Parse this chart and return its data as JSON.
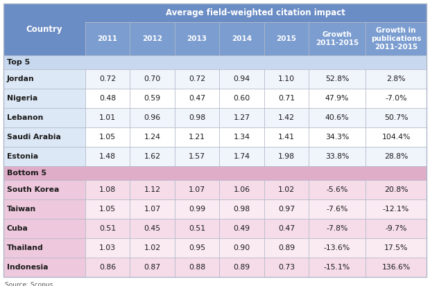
{
  "title_row": "Average field-weighted citation impact",
  "col_headers": [
    "2011",
    "2012",
    "2013",
    "2014",
    "2015",
    "Growth\n2011-2015",
    "Growth in\npublications\n2011-2015"
  ],
  "row_header": "Country",
  "section_top": "Top 5",
  "section_bottom": "Bottom 5",
  "top5_rows": [
    [
      "Jordan",
      "0.72",
      "0.70",
      "0.72",
      "0.94",
      "1.10",
      "52.8%",
      "2.8%"
    ],
    [
      "Nigeria",
      "0.48",
      "0.59",
      "0.47",
      "0.60",
      "0.71",
      "47.9%",
      "-7.0%"
    ],
    [
      "Lebanon",
      "1.01",
      "0.96",
      "0.98",
      "1.27",
      "1.42",
      "40.6%",
      "50.7%"
    ],
    [
      "Saudi Arabia",
      "1.05",
      "1.24",
      "1.21",
      "1.34",
      "1.41",
      "34.3%",
      "104.4%"
    ],
    [
      "Estonia",
      "1.48",
      "1.62",
      "1.57",
      "1.74",
      "1.98",
      "33.8%",
      "28.8%"
    ]
  ],
  "bottom5_rows": [
    [
      "South Korea",
      "1.08",
      "1.12",
      "1.07",
      "1.06",
      "1.02",
      "-5.6%",
      "20.8%"
    ],
    [
      "Taiwan",
      "1.05",
      "1.07",
      "0.99",
      "0.98",
      "0.97",
      "-7.6%",
      "-12.1%"
    ],
    [
      "Cuba",
      "0.51",
      "0.45",
      "0.51",
      "0.49",
      "0.47",
      "-7.8%",
      "-9.7%"
    ],
    [
      "Thailand",
      "1.03",
      "1.02",
      "0.95",
      "0.90",
      "0.89",
      "-13.6%",
      "17.5%"
    ],
    [
      "Indonesia",
      "0.86",
      "0.87",
      "0.88",
      "0.89",
      "0.73",
      "-15.1%",
      "136.6%"
    ]
  ],
  "source": "Source: Scopus",
  "header_bg": "#6b8dc5",
  "header_text": "#ffffff",
  "subheader_bg": "#7b9dd0",
  "section_top_bg": "#c8d8ee",
  "section_bottom_bg": "#e0adc8",
  "top5_row_bg_odd": "#f0f4fb",
  "top5_row_bg_even": "#ffffff",
  "bottom5_row_bg_odd": "#f5dce8",
  "bottom5_row_bg_even": "#faeaf2",
  "country_col_top_bg": "#dce8f5",
  "country_col_bottom_bg": "#eec8dc",
  "border_color": "#b0b8c8",
  "text_color": "#1a1a1a",
  "source_color": "#555555"
}
